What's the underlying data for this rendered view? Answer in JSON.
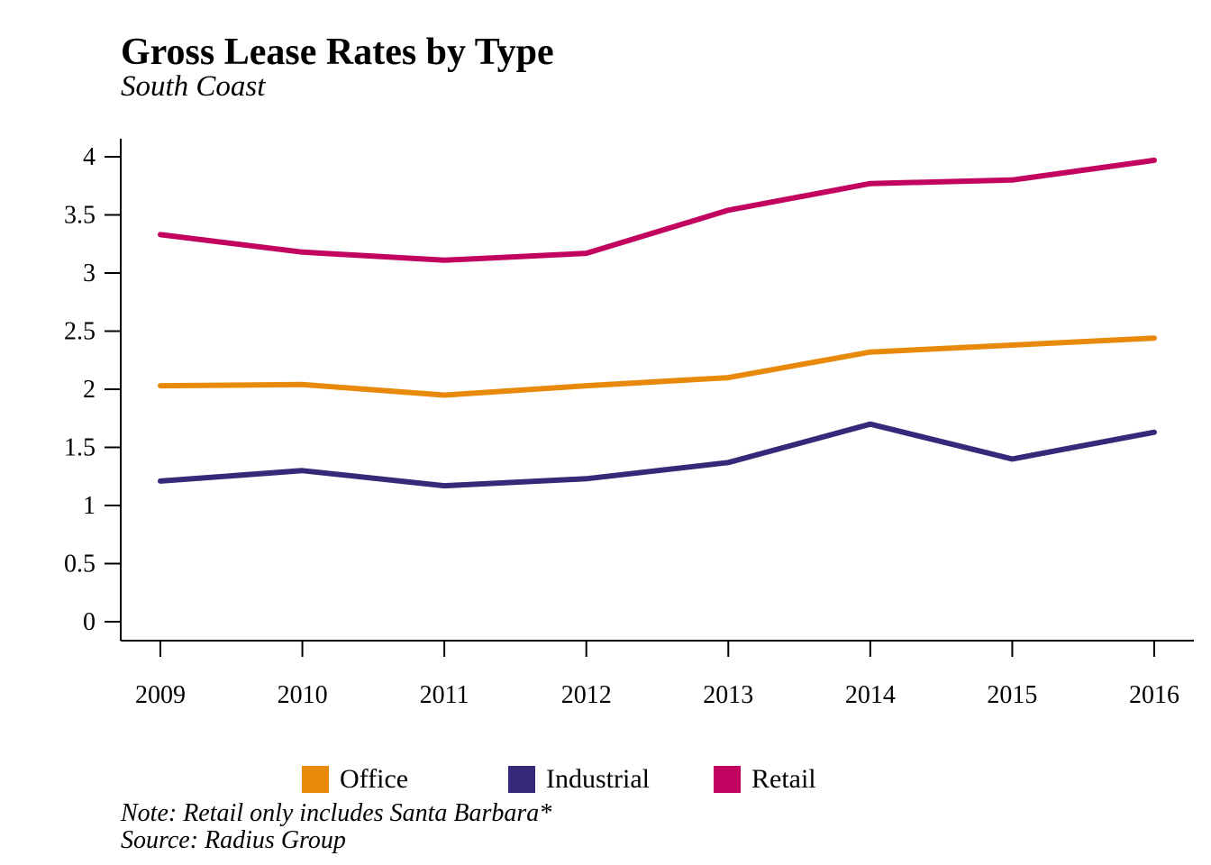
{
  "chart_data": {
    "type": "line",
    "title": "Gross Lease Rates by Type",
    "subtitle": "South Coast",
    "categories": [
      "2009",
      "2010",
      "2011",
      "2012",
      "2013",
      "2014",
      "2015",
      "2016"
    ],
    "y_ticks": [
      "0",
      "0.5",
      "1",
      "1.5",
      "2",
      "2.5",
      "3",
      "3.5",
      "4"
    ],
    "ylim": [
      0,
      4
    ],
    "grid": false,
    "legend_position": "bottom",
    "series": [
      {
        "name": "Office",
        "color": "#E8890C",
        "values": [
          2.03,
          2.04,
          1.95,
          2.03,
          2.1,
          2.32,
          2.38,
          2.44
        ]
      },
      {
        "name": "Industrial",
        "color": "#35297A",
        "values": [
          1.21,
          1.3,
          1.17,
          1.23,
          1.37,
          1.7,
          1.4,
          1.63
        ]
      },
      {
        "name": "Retail",
        "color": "#C2035F",
        "values": [
          3.33,
          3.18,
          3.11,
          3.17,
          3.54,
          3.77,
          3.8,
          3.97
        ]
      }
    ]
  },
  "footer": {
    "note": "Note: Retail only includes Santa Barbara*",
    "source": "Source: Radius Group"
  }
}
